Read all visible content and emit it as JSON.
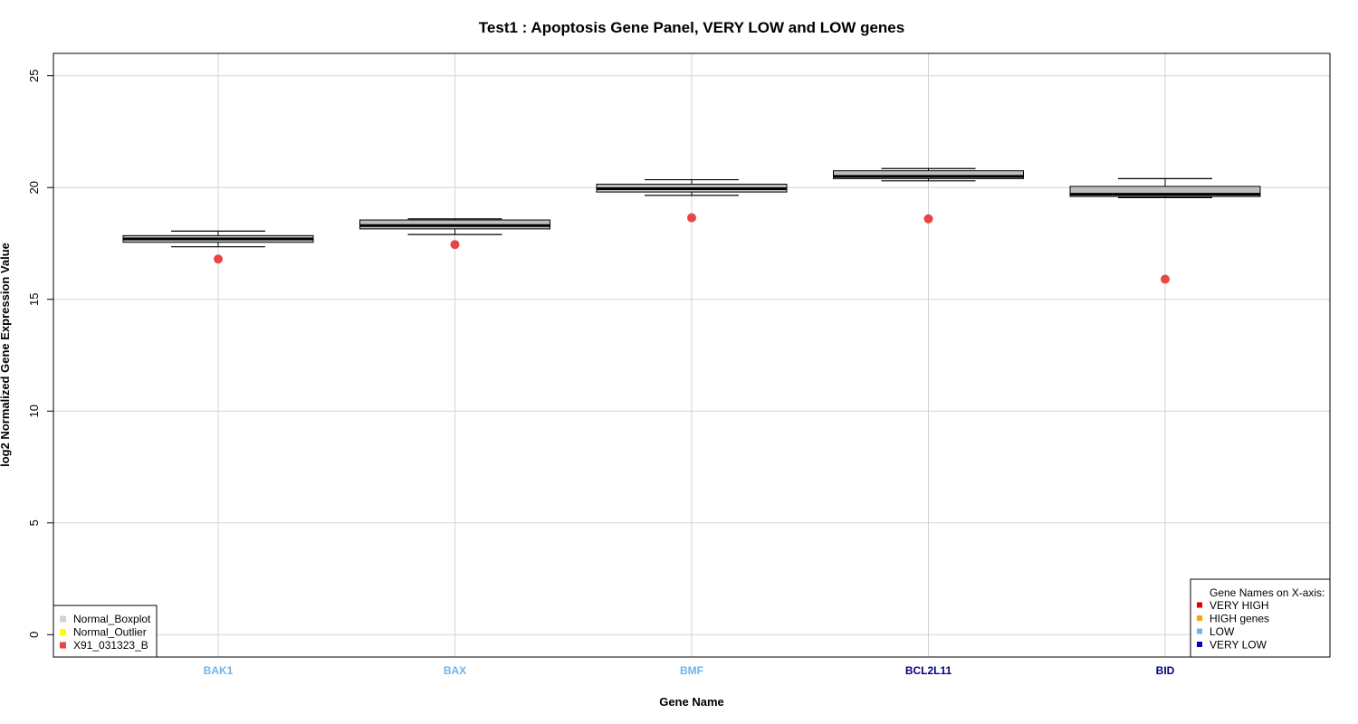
{
  "chart_data": {
    "type": "box",
    "title": "Test1 : Apoptosis Gene Panel, VERY LOW and LOW genes",
    "xlabel": "Gene Name",
    "ylabel": "log2 Normalized Gene Expression Value",
    "ylim": [
      -1,
      26
    ],
    "yticks": [
      0,
      5,
      10,
      15,
      20,
      25
    ],
    "grid": true,
    "categories": [
      "BAK1",
      "BAX",
      "BMF",
      "BCL2L11",
      "BID"
    ],
    "category_colors": [
      "#6CB4EE",
      "#6CB4EE",
      "#6CB4EE",
      "#000080",
      "#000080"
    ],
    "boxes": [
      {
        "name": "BAK1",
        "whisker_low": 17.35,
        "q1": 17.55,
        "median": 17.7,
        "q3": 17.85,
        "whisker_high": 18.05
      },
      {
        "name": "BAX",
        "whisker_low": 17.9,
        "q1": 18.15,
        "median": 18.3,
        "q3": 18.55,
        "whisker_high": 18.6
      },
      {
        "name": "BMF",
        "whisker_low": 19.65,
        "q1": 19.8,
        "median": 19.95,
        "q3": 20.15,
        "whisker_high": 20.35
      },
      {
        "name": "BCL2L11",
        "whisker_low": 20.3,
        "q1": 20.4,
        "median": 20.5,
        "q3": 20.75,
        "whisker_high": 20.85
      },
      {
        "name": "BID",
        "whisker_low": 19.55,
        "q1": 19.6,
        "median": 19.7,
        "q3": 20.05,
        "whisker_high": 20.4
      }
    ],
    "sample_points": {
      "name": "X91_031323_B",
      "color": "#E84545",
      "values": [
        16.8,
        17.45,
        18.65,
        18.6,
        15.9
      ]
    },
    "box_fill": "#BEBEBE",
    "legend_left": {
      "placement": "bottom-left",
      "entries": [
        {
          "label": "Normal_Boxplot",
          "color": "#D3D3D3"
        },
        {
          "label": "Normal_Outlier",
          "color": "#FFFF00"
        },
        {
          "label": "X91_031323_B",
          "color": "#E84545"
        }
      ]
    },
    "legend_right": {
      "placement": "bottom-right",
      "title": "Gene Names on X-axis:",
      "entries": [
        {
          "label": "VERY HIGH",
          "color": "#E00000"
        },
        {
          "label": "HIGH genes",
          "color": "#FFA500"
        },
        {
          "label": "LOW",
          "color": "#6CB4EE"
        },
        {
          "label": "VERY LOW",
          "color": "#0000CC"
        }
      ]
    }
  }
}
